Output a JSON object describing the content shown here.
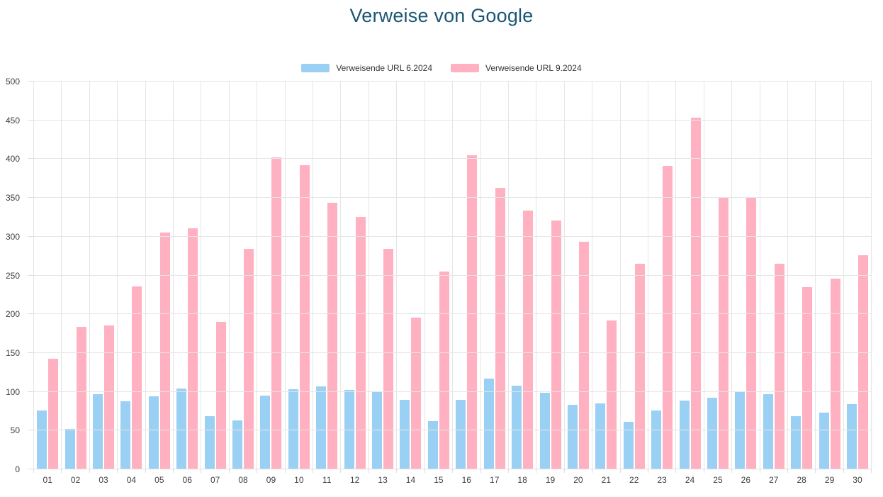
{
  "title": "Verweise von Google",
  "colors": {
    "title_text": "#1a5673",
    "series_blue": "#9bd0f5",
    "series_pink": "#ffb1c1",
    "grid": "#e5e5e5",
    "axis_text": "#404040",
    "legend_text": "#333333"
  },
  "legend": {
    "items": [
      {
        "label": "Verweisende URL 6.2024",
        "color": "#9bd0f5"
      },
      {
        "label": "Verweisende URL 9.2024",
        "color": "#ffb1c1"
      }
    ]
  },
  "chart_data": {
    "type": "bar",
    "title": "Verweise von Google",
    "xlabel": "",
    "ylabel": "",
    "categories": [
      "01",
      "02",
      "03",
      "04",
      "05",
      "06",
      "07",
      "08",
      "09",
      "10",
      "11",
      "12",
      "13",
      "14",
      "15",
      "16",
      "17",
      "18",
      "19",
      "20",
      "21",
      "22",
      "23",
      "24",
      "25",
      "26",
      "27",
      "28",
      "29",
      "30"
    ],
    "series": [
      {
        "name": "Verweisende URL 6.2024",
        "color": "#9bd0f5",
        "values": [
          76,
          52,
          97,
          88,
          94,
          104,
          69,
          63,
          95,
          103,
          107,
          102,
          100,
          90,
          62,
          90,
          117,
          108,
          99,
          83,
          85,
          61,
          76,
          89,
          92,
          101,
          97,
          69,
          73,
          84
        ]
      },
      {
        "name": "Verweisende URL 9.2024",
        "color": "#ffb1c1",
        "values": [
          143,
          184,
          186,
          236,
          305,
          311,
          190,
          284,
          402,
          392,
          344,
          325,
          284,
          196,
          255,
          405,
          363,
          334,
          321,
          293,
          192,
          265,
          391,
          453,
          351,
          351,
          265,
          235,
          246,
          276
        ]
      }
    ],
    "ylim": [
      0,
      500
    ],
    "ytick_step": 50,
    "yticks": [
      0,
      50,
      100,
      150,
      200,
      250,
      300,
      350,
      400,
      450,
      500
    ],
    "grid": true,
    "legend_position": "top"
  }
}
